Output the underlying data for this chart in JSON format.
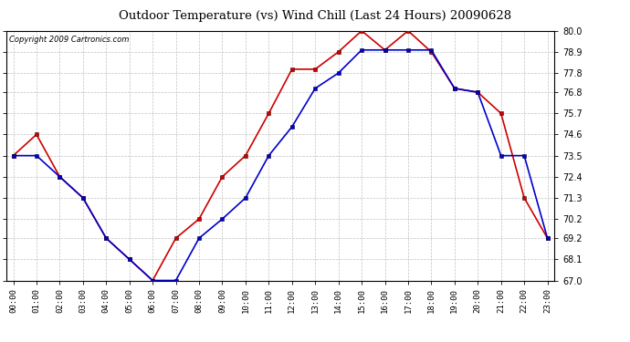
{
  "title": "Outdoor Temperature (vs) Wind Chill (Last 24 Hours) 20090628",
  "copyright": "Copyright 2009 Cartronics.com",
  "hours": [
    "00:00",
    "01:00",
    "02:00",
    "03:00",
    "04:00",
    "05:00",
    "06:00",
    "07:00",
    "08:00",
    "09:00",
    "10:00",
    "11:00",
    "12:00",
    "13:00",
    "14:00",
    "15:00",
    "16:00",
    "17:00",
    "18:00",
    "19:00",
    "20:00",
    "21:00",
    "22:00",
    "23:00"
  ],
  "temp": [
    73.5,
    74.6,
    72.4,
    71.3,
    69.2,
    68.1,
    67.0,
    69.2,
    70.2,
    72.4,
    73.5,
    75.7,
    78.0,
    78.0,
    78.9,
    80.0,
    79.0,
    80.0,
    78.9,
    77.0,
    76.8,
    75.7,
    71.3,
    69.2
  ],
  "windchill": [
    73.5,
    73.5,
    72.4,
    71.3,
    69.2,
    68.1,
    67.0,
    67.0,
    69.2,
    70.2,
    71.3,
    73.5,
    75.0,
    77.0,
    77.8,
    79.0,
    79.0,
    79.0,
    79.0,
    77.0,
    76.8,
    73.5,
    73.5,
    69.2
  ],
  "temp_color": "#cc0000",
  "windchill_color": "#0000cc",
  "ylim": [
    67.0,
    80.0
  ],
  "yticks": [
    67.0,
    68.1,
    69.2,
    70.2,
    71.3,
    72.4,
    73.5,
    74.6,
    75.7,
    76.8,
    77.8,
    78.9,
    80.0
  ],
  "bg_color": "#ffffff",
  "plot_bg_color": "#ffffff",
  "grid_color": "#bbbbbb",
  "marker": "s",
  "marker_size": 2.5,
  "linewidth": 1.2,
  "title_fontsize": 9.5,
  "copyright_fontsize": 6.0,
  "tick_fontsize": 7.0,
  "xtick_fontsize": 6.5
}
